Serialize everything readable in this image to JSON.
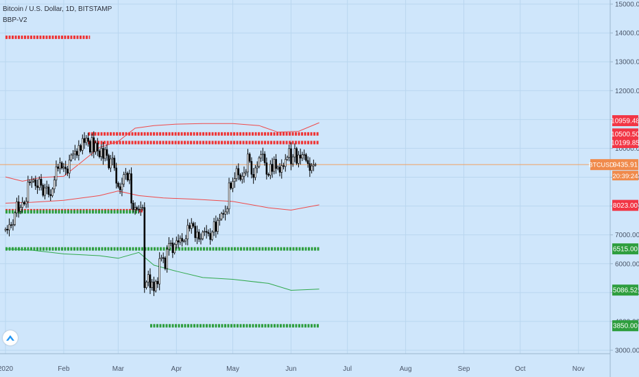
{
  "header": {
    "symbol_title": "Bitcoin / U.S. Dollar, 1D, BITSTAMP",
    "indicator_name": "BBP-V2"
  },
  "colors": {
    "background": "#cfe6fb",
    "up_candle": "#ffffff",
    "down_candle": "#000000",
    "resistance": "#ef3434",
    "support": "#2e9e3e",
    "upper_band": "#f04848",
    "lower_band": "#2ea84a",
    "price_line": "#f0a060",
    "price_label_bg": "#f08a4b",
    "grid": "#b9d6ef"
  },
  "chart_data": {
    "type": "candlestick",
    "title": "Bitcoin / U.S. Dollar, 1D, BITSTAMP",
    "indicator": "BBP-V2",
    "y_axis": {
      "range": [
        2900,
        15200
      ],
      "ticks": [
        "15000.00",
        "14000.00",
        "13000.00",
        "12000.00",
        "11000.00",
        "10000.00",
        "9000.00",
        "8000.00",
        "7000.00",
        "6000.00",
        "5000.00",
        "4000.00",
        "3000.00"
      ]
    },
    "x_axis": {
      "range": [
        "2020-01-01",
        "2020-11-15"
      ],
      "ticks": [
        {
          "date": "2020-01-01",
          "label": "2020"
        },
        {
          "date": "2020-02-01",
          "label": "Feb"
        },
        {
          "date": "2020-03-01",
          "label": "Mar"
        },
        {
          "date": "2020-04-01",
          "label": "Apr"
        },
        {
          "date": "2020-05-01",
          "label": "May"
        },
        {
          "date": "2020-06-01",
          "label": "Jun"
        },
        {
          "date": "2020-07-01",
          "label": "Jul"
        },
        {
          "date": "2020-08-01",
          "label": "Aug"
        },
        {
          "date": "2020-09-01",
          "label": "Sep"
        },
        {
          "date": "2020-10-01",
          "label": "Oct"
        },
        {
          "date": "2020-11-01",
          "label": "Nov"
        }
      ]
    },
    "candle_closes": {
      "start": "2020-01-01",
      "end": "2020-06-16",
      "values": [
        7200,
        7170,
        7350,
        7330,
        7360,
        7760,
        8150,
        7820,
        7950,
        8130,
        8070,
        8160,
        8830,
        8810,
        8860,
        8910,
        8700,
        8640,
        8930,
        8720,
        8370,
        8630,
        8660,
        8400,
        8360,
        8590,
        8900,
        9360,
        9300,
        9500,
        9320,
        9350,
        9290,
        9140,
        9600,
        9770,
        9800,
        9900,
        9760,
        10100,
        9930,
        10340,
        10200,
        10360,
        10240,
        9870,
        10370,
        9880,
        10180,
        9910,
        9710,
        10000,
        9650,
        9960,
        9750,
        9320,
        9630,
        9660,
        9320,
        8790,
        8670,
        8560,
        8760,
        9090,
        9140,
        8900,
        9120,
        8100,
        7880,
        7950,
        7890,
        7880,
        7940,
        7950,
        5169,
        5360,
        5620,
        5170,
        5370,
        5060,
        5390,
        5300,
        6180,
        6210,
        6200,
        5830,
        6500,
        6700,
        6720,
        6380,
        6670,
        6800,
        6750,
        6880,
        6780,
        6790,
        6860,
        7330,
        7220,
        7400,
        7300,
        6900,
        7100,
        6850,
        6870,
        7100,
        7120,
        7090,
        7050,
        6840,
        7100,
        7450,
        7120,
        7500,
        7550,
        7740,
        7720,
        7800,
        7900,
        8800,
        8620,
        8850,
        8950,
        9300,
        9080,
        8920,
        9030,
        9150,
        9180,
        9800,
        9550,
        9100,
        8990,
        9320,
        9370,
        9670,
        9780,
        9800,
        9500,
        9100,
        9070,
        9450,
        9200,
        9620,
        9300,
        9350,
        9170,
        9400,
        9370,
        9620,
        9690,
        9990,
        9460,
        9700,
        9990,
        9480,
        9770,
        9660,
        9780,
        9780,
        9580,
        9470,
        9230,
        9390,
        9430,
        9440
      ],
      "approx": "estimated from candle bodies; OHLC approximated"
    },
    "resistance_levels": [
      {
        "price": 10500,
        "from": "2020-02-14",
        "to": "2020-06-16"
      },
      {
        "price": 10199,
        "from": "2020-02-14",
        "to": "2020-06-16"
      },
      {
        "price": 13850,
        "from": "2020-01-01",
        "to": "2020-02-15"
      },
      {
        "price": 7840,
        "from": "2020-01-01",
        "to": "2020-03-14"
      }
    ],
    "support_levels": [
      {
        "price": 7800,
        "from": "2020-01-01",
        "to": "2020-03-12"
      },
      {
        "price": 6515,
        "from": "2020-01-01",
        "to": "2020-06-16"
      },
      {
        "price": 3850,
        "from": "2020-03-18",
        "to": "2020-06-16"
      }
    ],
    "upper_band": {
      "points": [
        {
          "date": "2020-01-01",
          "value": 9010
        },
        {
          "date": "2020-01-10",
          "value": 8860
        },
        {
          "date": "2020-01-20",
          "value": 8990
        },
        {
          "date": "2020-02-01",
          "value": 9030
        },
        {
          "date": "2020-02-10",
          "value": 9500
        },
        {
          "date": "2020-02-20",
          "value": 10030
        },
        {
          "date": "2020-03-01",
          "value": 10240
        },
        {
          "date": "2020-03-10",
          "value": 10700
        },
        {
          "date": "2020-03-20",
          "value": 10790
        },
        {
          "date": "2020-04-01",
          "value": 10840
        },
        {
          "date": "2020-04-15",
          "value": 10860
        },
        {
          "date": "2020-05-01",
          "value": 10860
        },
        {
          "date": "2020-05-15",
          "value": 10790
        },
        {
          "date": "2020-05-25",
          "value": 10560
        },
        {
          "date": "2020-06-05",
          "value": 10590
        },
        {
          "date": "2020-06-16",
          "value": 10890
        }
      ]
    },
    "middle_band": {
      "points": [
        {
          "date": "2020-01-01",
          "value": 8100
        },
        {
          "date": "2020-01-15",
          "value": 8130
        },
        {
          "date": "2020-02-01",
          "value": 8200
        },
        {
          "date": "2020-02-20",
          "value": 8360
        },
        {
          "date": "2020-03-01",
          "value": 8520
        },
        {
          "date": "2020-03-12",
          "value": 8360
        },
        {
          "date": "2020-03-25",
          "value": 8280
        },
        {
          "date": "2020-04-10",
          "value": 8240
        },
        {
          "date": "2020-05-01",
          "value": 8160
        },
        {
          "date": "2020-05-20",
          "value": 7940
        },
        {
          "date": "2020-06-01",
          "value": 7860
        },
        {
          "date": "2020-06-16",
          "value": 8040
        }
      ]
    },
    "lower_band": {
      "points": [
        {
          "date": "2020-01-01",
          "value": 6520
        },
        {
          "date": "2020-01-15",
          "value": 6470
        },
        {
          "date": "2020-02-01",
          "value": 6340
        },
        {
          "date": "2020-02-20",
          "value": 6280
        },
        {
          "date": "2020-03-01",
          "value": 6190
        },
        {
          "date": "2020-03-12",
          "value": 6390
        },
        {
          "date": "2020-03-20",
          "value": 5950
        },
        {
          "date": "2020-04-01",
          "value": 5740
        },
        {
          "date": "2020-04-15",
          "value": 5520
        },
        {
          "date": "2020-05-01",
          "value": 5460
        },
        {
          "date": "2020-05-20",
          "value": 5320
        },
        {
          "date": "2020-06-01",
          "value": 5080
        },
        {
          "date": "2020-06-16",
          "value": 5120
        }
      ]
    },
    "price_labels": [
      {
        "text": "10959.48",
        "value": 10959.48,
        "kind": "resistance"
      },
      {
        "text": "10500.50",
        "value": 10500.5,
        "kind": "resistance"
      },
      {
        "text": "10199.85",
        "value": 10199.85,
        "kind": "resistance"
      },
      {
        "text": "9435.91",
        "value": 9435.91,
        "kind": "last",
        "symbol": "BTCUSD",
        "countdown": "20:39:24"
      },
      {
        "text": "8023.00",
        "value": 8023,
        "kind": "resistance"
      },
      {
        "text": "6515.00",
        "value": 6515,
        "kind": "support"
      },
      {
        "text": "5086.52",
        "value": 5086.52,
        "kind": "support"
      },
      {
        "text": "3850.00",
        "value": 3850,
        "kind": "support"
      }
    ],
    "grid": true
  }
}
